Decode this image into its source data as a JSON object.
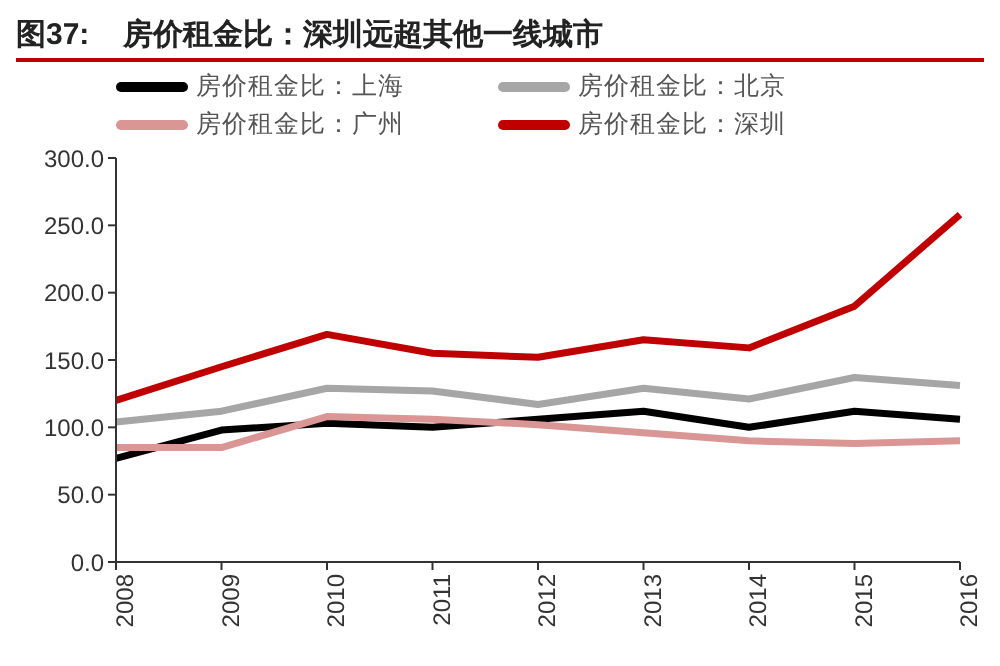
{
  "chart_data": {
    "type": "line",
    "title": "图37:    房价租金比：深圳远超其他一线城市",
    "categories": [
      "2008",
      "2009",
      "2010",
      "2011",
      "2012",
      "2013",
      "2014",
      "2015",
      "2016"
    ],
    "series": [
      {
        "name": "房价租金比：北京",
        "color": "#a6a6a6",
        "values": [
          104,
          112,
          129,
          127,
          117,
          129,
          121,
          137,
          131
        ]
      },
      {
        "name": "房价租金比：上海",
        "color": "#000000",
        "values": [
          77,
          98,
          103,
          100,
          106,
          112,
          100,
          112,
          106
        ]
      },
      {
        "name": "房价租金比：广州",
        "color": "#d99694",
        "values": [
          85,
          85,
          108,
          106,
          102,
          96,
          90,
          88,
          90
        ]
      },
      {
        "name": "房价租金比：深圳",
        "color": "#c00000",
        "values": [
          120,
          145,
          169,
          155,
          152,
          165,
          159,
          190,
          258
        ]
      }
    ],
    "ylim": [
      0,
      300
    ],
    "yticks": [
      {
        "value": 0,
        "label": "0.0"
      },
      {
        "value": 50,
        "label": "50.0"
      },
      {
        "value": 100,
        "label": "100.0"
      },
      {
        "value": 150,
        "label": "150.0"
      },
      {
        "value": 200,
        "label": "200.0"
      },
      {
        "value": 250,
        "label": "250.0"
      },
      {
        "value": 300,
        "label": "300.0"
      }
    ],
    "grid": false,
    "legend": "top",
    "marker": "none",
    "line_style": "solid"
  }
}
